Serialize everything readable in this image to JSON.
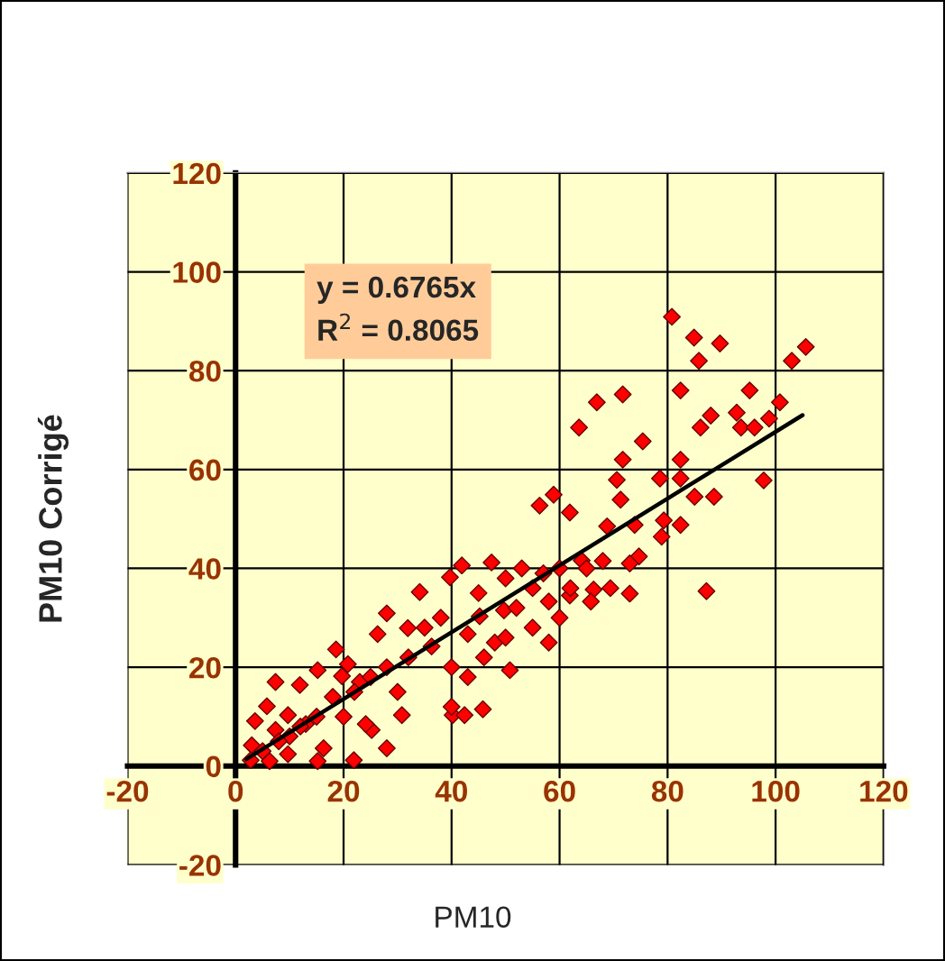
{
  "chart_data": {
    "type": "scatter",
    "xlabel": "PM10",
    "ylabel": "PM10 Corrigé",
    "xlim": [
      -20,
      120
    ],
    "ylim": [
      -20,
      120
    ],
    "xticks": [
      -20,
      0,
      20,
      40,
      60,
      80,
      100,
      120
    ],
    "yticks": [
      -20,
      0,
      20,
      40,
      60,
      80,
      100,
      120
    ],
    "grid": true,
    "marker": "diamond",
    "legend": false,
    "annotations": [
      "y = 0.6765x",
      "R$^{2}$ = 0.8065"
    ],
    "series": [
      {
        "color": "#ff0000",
        "x": [
          80.8,
          84.9,
          89.7,
          85.8,
          103,
          105.6,
          82.4,
          95.2,
          66.9,
          71.7,
          63.6,
          88,
          86.1,
          92.8,
          93.6,
          96.1,
          98.8,
          100.8,
          75.4,
          71.7,
          82.4,
          70.6,
          78.6,
          82.4,
          97.8,
          85,
          88.6,
          71.3,
          56.3,
          58.9,
          61.9,
          68.8,
          73.9,
          79.3,
          82.4,
          78.9,
          87.2,
          74.7,
          73,
          68,
          73,
          69.4,
          66.3,
          65.8,
          61.9,
          58,
          64.1,
          3,
          2.8,
          6.3,
          3.6,
          7.4,
          5.8,
          9.7,
          11.9,
          15.2,
          18.6,
          21.9,
          25.2,
          28,
          28,
          34.1,
          30.8,
          40.2,
          42.4,
          45.8,
          41.9,
          39.7,
          47.4,
          50.8,
          19.7,
          23,
          15.2,
          31.9,
          36.3,
          43,
          45.2,
          49.7,
          26.3,
          20.8,
          13,
          16.3,
          9.7,
          24.1,
          7.4,
          50,
          53,
          55,
          52,
          57,
          60,
          55,
          48,
          45,
          38,
          35,
          32,
          28,
          25,
          22,
          18,
          15,
          12,
          10,
          8,
          5,
          20,
          30,
          40,
          43,
          46,
          50,
          62,
          65,
          60,
          58,
          40
        ],
        "values": [
          90.9,
          86.7,
          85.5,
          82,
          82,
          84.8,
          76,
          76,
          73.6,
          75.2,
          68.5,
          70.9,
          68.5,
          71.5,
          68.5,
          68.5,
          70.3,
          73.6,
          65.7,
          62,
          62,
          57.9,
          58.2,
          58.2,
          57.8,
          54.5,
          54.5,
          53.9,
          52.7,
          54.9,
          51.3,
          48.5,
          48.8,
          49.7,
          48.8,
          46.4,
          35.4,
          42.4,
          41,
          41.5,
          34.9,
          36,
          35.7,
          33.3,
          34.5,
          33.3,
          41.6,
          4.2,
          1.2,
          1,
          9.1,
          17,
          12.1,
          10.3,
          16.4,
          1,
          23.6,
          1.2,
          7.3,
          3.6,
          30.9,
          35.2,
          10.3,
          10.3,
          10.3,
          11.5,
          40.6,
          38.2,
          41.2,
          19.4,
          18.2,
          17,
          19.4,
          27.9,
          24.2,
          26.7,
          30.3,
          31.5,
          26.7,
          20.6,
          8.5,
          3.6,
          2.4,
          8.5,
          7.3,
          38,
          40,
          36,
          32,
          39,
          40,
          28,
          25,
          35,
          30,
          28,
          22,
          20,
          18,
          15,
          14,
          10,
          8,
          6,
          5,
          3,
          10,
          15,
          20,
          18,
          22,
          26,
          36,
          40,
          30,
          25,
          12
        ]
      },
      {
        "type": "line",
        "color": "#000000",
        "marker": "none",
        "x": [
          2,
          105
        ],
        "values": [
          1.4,
          71.0
        ]
      }
    ]
  }
}
